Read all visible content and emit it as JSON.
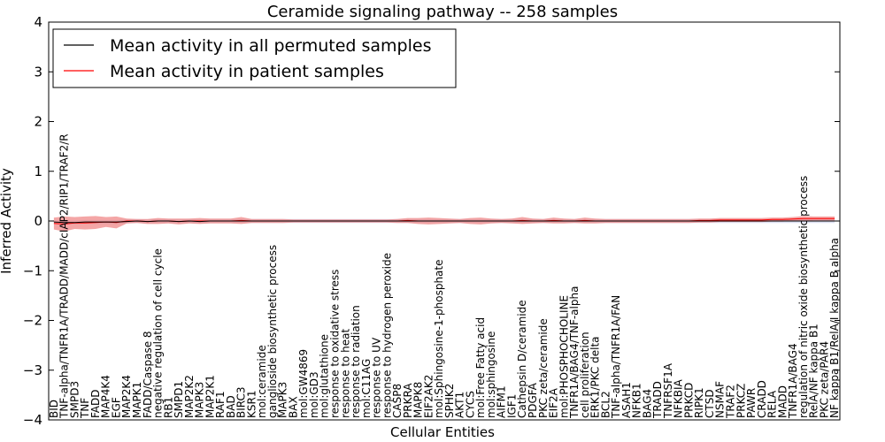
{
  "chart_data": {
    "type": "line",
    "title": "Ceramide signaling pathway -- 258 samples",
    "xlabel": "Cellular Entities",
    "ylabel": "Inferred Activity",
    "ylim": [
      -4,
      4
    ],
    "yticks": [
      -4,
      -3,
      -2,
      -1,
      0,
      1,
      2,
      3,
      4
    ],
    "grid": false,
    "legend_position": "top-left",
    "categories": [
      "BID",
      "TNF-alpha/TNFR1A/TRADD/MADD/cIAP2/RIP1/TRAF2/R",
      "SMPD3",
      "TNF",
      "FADD",
      "MAP4K4",
      "EGF",
      "MAP2K4",
      "MAPK1",
      "FADD/Caspase 8",
      "negative regulation of cell cycle",
      "RB1",
      "SMPD1",
      "MAP2K2",
      "MAPK3",
      "MAP2K1",
      "RAF1",
      "BAD",
      "BIRC3",
      "KSR1",
      "mol:ceramide",
      "ganglioside biosynthetic process",
      "MAPK3",
      "BAX",
      "mol:GW4869",
      "mol:GD3",
      "mol:glutathione",
      "response to oxidative stress",
      "response to heat",
      "response to radiation",
      "mol:C11AG",
      "response to UV",
      "response to hydrogen peroxide",
      "CASP8",
      "PRKRA",
      "MAPK8",
      "EIF2AK2",
      "mol:Sphingosine-1-phosphate",
      "SPHK2",
      "AKT1",
      "CYCS",
      "mol:Free Fatty acid",
      "mol:sphingosine",
      "AIFM1",
      "IGF1",
      "Cathepsin D/ceramide",
      "PDGFA",
      "PKC zeta/ceramide",
      "EIF2A",
      "mol:PHOSPHOCHOLINE",
      "TNFR1A/BAG4/TNF-alpha",
      "cell proliferation",
      "ERK1/PKC delta",
      "BCL2",
      "TNF-alpha/TNFR1A/FAN",
      "ASAH1",
      "NFKB1",
      "BAG4",
      "TRADD",
      "TNFRSF1A",
      "NFKBIA",
      "PRKCD",
      "RIPK1",
      "CTSD",
      "NSMAF",
      "TRAF2",
      "PRKCZ",
      "PAWR",
      "CRADD",
      "RELA",
      "MADD",
      "TNFR1A/BAG4",
      "regulation of nitric oxide biosynthetic process",
      "RelA/NF kappa B1",
      "PKC zeta/PAR4",
      "NF kappa B1/RelA/I kappa B alpha"
    ],
    "series": [
      {
        "name": "Mean activity in all permuted samples",
        "color": "#000000",
        "values": [
          -0.02,
          -0.03,
          -0.03,
          -0.02,
          -0.02,
          -0.02,
          -0.02,
          -0.01,
          0.0,
          -0.01,
          0.0,
          0.0,
          -0.01,
          0.0,
          -0.01,
          0.0,
          0.0,
          0.0,
          0.0,
          0.0,
          0.0,
          0.0,
          0.0,
          0.0,
          0.0,
          0.0,
          0.0,
          0.0,
          0.0,
          0.0,
          0.0,
          0.0,
          0.0,
          0.0,
          0.0,
          0.0,
          0.0,
          0.0,
          0.0,
          0.0,
          0.0,
          0.0,
          0.0,
          0.0,
          0.0,
          0.0,
          0.0,
          0.0,
          0.0,
          0.0,
          0.0,
          0.0,
          0.0,
          0.0,
          0.0,
          0.0,
          0.0,
          0.0,
          0.0,
          0.0,
          0.0,
          0.0,
          0.0,
          0.0,
          0.0,
          0.0,
          0.0,
          0.0,
          0.0,
          0.0,
          0.0,
          0.0,
          0.0,
          0.0,
          0.0,
          0.0
        ]
      },
      {
        "name": "Mean activity in patient samples",
        "color": "#ff0000",
        "band_color": "#f08080",
        "values": [
          -0.05,
          -0.06,
          -0.04,
          -0.04,
          -0.03,
          -0.02,
          -0.03,
          0.0,
          0.0,
          -0.01,
          0.0,
          0.0,
          -0.01,
          0.0,
          0.0,
          0.0,
          0.0,
          0.0,
          0.01,
          0.0,
          0.0,
          0.0,
          0.0,
          0.0,
          0.0,
          0.0,
          0.0,
          0.0,
          0.0,
          0.0,
          0.0,
          0.0,
          0.0,
          0.0,
          0.01,
          0.0,
          0.0,
          0.0,
          0.0,
          0.0,
          0.0,
          0.0,
          0.0,
          0.0,
          0.0,
          0.01,
          0.0,
          0.0,
          0.01,
          0.0,
          0.0,
          0.01,
          0.0,
          0.0,
          0.0,
          0.0,
          0.0,
          0.0,
          0.0,
          0.0,
          0.0,
          0.0,
          0.01,
          0.01,
          0.02,
          0.02,
          0.02,
          0.02,
          0.02,
          0.03,
          0.03,
          0.04,
          0.05,
          0.05,
          0.05,
          0.05
        ],
        "spread": [
          0.12,
          0.15,
          0.12,
          0.13,
          0.13,
          0.1,
          0.12,
          0.05,
          0.04,
          0.05,
          0.06,
          0.05,
          0.06,
          0.05,
          0.06,
          0.05,
          0.05,
          0.05,
          0.07,
          0.04,
          0.04,
          0.04,
          0.04,
          0.03,
          0.03,
          0.03,
          0.03,
          0.03,
          0.03,
          0.03,
          0.03,
          0.03,
          0.03,
          0.04,
          0.05,
          0.06,
          0.07,
          0.06,
          0.05,
          0.04,
          0.06,
          0.07,
          0.05,
          0.04,
          0.05,
          0.07,
          0.05,
          0.04,
          0.06,
          0.05,
          0.04,
          0.06,
          0.05,
          0.04,
          0.04,
          0.04,
          0.04,
          0.04,
          0.04,
          0.04,
          0.04,
          0.04,
          0.04,
          0.04,
          0.04,
          0.04,
          0.04,
          0.04,
          0.04,
          0.04,
          0.04,
          0.04,
          0.05,
          0.04,
          0.04,
          0.04
        ]
      }
    ],
    "permuted_spread": 0.04,
    "permuted_band_color": "#b0b8e0"
  }
}
